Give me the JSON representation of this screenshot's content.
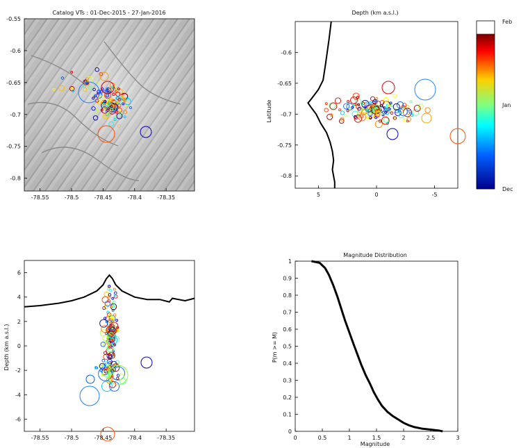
{
  "figure": {
    "panels": [
      "map",
      "depth_lat",
      "depth_lon",
      "magnitude"
    ]
  },
  "chart_data": [
    {
      "id": "map",
      "type": "scatter",
      "title": "Catalog VTs : 01-Dec-2015 - 27-Jan-2016",
      "xlabel": "",
      "ylabel": "",
      "xlim": [
        -78.575,
        -78.305
      ],
      "ylim": [
        -0.82,
        -0.55
      ],
      "xticks": [
        -78.55,
        -78.5,
        -78.45,
        -78.4,
        -78.35
      ],
      "yticks": [
        -0.55,
        -0.6,
        -0.65,
        -0.7,
        -0.75,
        -0.8
      ],
      "xtick_labels": [
        "-78.55",
        "-78.5",
        "-78.45",
        "-78.4",
        "-78.35"
      ],
      "ytick_labels": [
        "-0.55",
        "-0.6",
        "-0.65",
        "-0.7",
        "-0.75",
        "-0.8"
      ],
      "background": "shaded-relief",
      "grid": false
    },
    {
      "id": "depth_lat",
      "type": "scatter",
      "title": "Depth (km a.s.l.)",
      "xlabel": "",
      "ylabel": "Latitude",
      "xlim": [
        7,
        -7
      ],
      "ylim": [
        -0.82,
        -0.55
      ],
      "xticks": [
        5,
        0,
        -5
      ],
      "yticks": [
        -0.6,
        -0.65,
        -0.7,
        -0.75,
        -0.8
      ],
      "xtick_labels": [
        "5",
        "0",
        "-5"
      ],
      "ytick_labels": [
        "-0.6",
        "-0.65",
        "-0.7",
        "-0.75",
        "-0.8"
      ],
      "topography_line": [
        [
          3.9,
          -0.55
        ],
        [
          4.1,
          -0.58
        ],
        [
          4.4,
          -0.62
        ],
        [
          4.6,
          -0.645
        ],
        [
          5.0,
          -0.66
        ],
        [
          5.6,
          -0.675
        ],
        [
          5.9,
          -0.682
        ],
        [
          5.6,
          -0.69
        ],
        [
          5.2,
          -0.7
        ],
        [
          4.8,
          -0.715
        ],
        [
          4.3,
          -0.73
        ],
        [
          4.0,
          -0.745
        ],
        [
          3.8,
          -0.76
        ],
        [
          3.7,
          -0.775
        ],
        [
          3.8,
          -0.79
        ],
        [
          3.6,
          -0.81
        ],
        [
          3.6,
          -0.82
        ]
      ],
      "grid": false
    },
    {
      "id": "depth_lon",
      "type": "scatter",
      "title": "",
      "xlabel": "",
      "ylabel": "Depth (km a.s.l.)",
      "xlim": [
        -78.575,
        -78.305
      ],
      "ylim": [
        -7,
        7
      ],
      "xticks": [
        -78.55,
        -78.5,
        -78.45,
        -78.4,
        -78.35
      ],
      "yticks": [
        6,
        4,
        2,
        0,
        -2,
        -4,
        -6
      ],
      "xtick_labels": [
        "-78.55",
        "-78.5",
        "-78.45",
        "-78.4",
        "-78.35"
      ],
      "ytick_labels": [
        "6",
        "4",
        "2",
        "0",
        "-2",
        "-4",
        "-6"
      ],
      "topography_line": [
        [
          -78.575,
          3.2
        ],
        [
          -78.55,
          3.3
        ],
        [
          -78.52,
          3.5
        ],
        [
          -78.5,
          3.7
        ],
        [
          -78.48,
          4.0
        ],
        [
          -78.46,
          4.5
        ],
        [
          -78.45,
          5.0
        ],
        [
          -78.445,
          5.5
        ],
        [
          -78.44,
          5.8
        ],
        [
          -78.435,
          5.5
        ],
        [
          -78.43,
          5.0
        ],
        [
          -78.42,
          4.5
        ],
        [
          -78.4,
          4.0
        ],
        [
          -78.38,
          3.8
        ],
        [
          -78.36,
          3.8
        ],
        [
          -78.345,
          3.6
        ],
        [
          -78.34,
          3.9
        ],
        [
          -78.32,
          3.7
        ],
        [
          -78.305,
          3.9
        ]
      ],
      "grid": false
    },
    {
      "id": "magnitude",
      "type": "line",
      "title": "Magnitude Distribution",
      "xlabel": "Magnitude",
      "ylabel": "P(m >= M)",
      "xlim": [
        0,
        3
      ],
      "ylim": [
        0,
        1
      ],
      "xticks": [
        0,
        0.5,
        1,
        1.5,
        2,
        2.5,
        3
      ],
      "yticks": [
        0,
        0.1,
        0.2,
        0.3,
        0.4,
        0.5,
        0.6,
        0.7,
        0.8,
        0.9,
        1
      ],
      "xtick_labels": [
        "0",
        "0.5",
        "1",
        "1.5",
        "2",
        "2.5",
        "3"
      ],
      "ytick_labels": [
        "0",
        "0.1",
        "0.2",
        "0.3",
        "0.4",
        "0.5",
        "0.6",
        "0.7",
        "0.8",
        "0.9",
        "1"
      ],
      "series": [
        {
          "color": "#000000",
          "x": [
            0.3,
            0.45,
            0.55,
            0.62,
            0.7,
            0.78,
            0.85,
            0.92,
            1.0,
            1.08,
            1.15,
            1.22,
            1.3,
            1.38,
            1.45,
            1.52,
            1.6,
            1.7,
            1.8,
            1.9,
            2.0,
            2.1,
            2.2,
            2.35,
            2.5,
            2.65,
            2.72
          ],
          "y": [
            1.0,
            0.99,
            0.96,
            0.92,
            0.86,
            0.79,
            0.72,
            0.65,
            0.58,
            0.51,
            0.45,
            0.39,
            0.33,
            0.28,
            0.23,
            0.19,
            0.15,
            0.115,
            0.09,
            0.07,
            0.05,
            0.035,
            0.025,
            0.015,
            0.01,
            0.005,
            0.0
          ]
        }
      ],
      "grid": false
    }
  ],
  "colorbar": {
    "top_label": "Feb",
    "mid_label": "Jan",
    "bottom_label": "Dec",
    "colors": [
      "#ffffff",
      "#800000",
      "#ff0000",
      "#ffff00",
      "#00ffff",
      "#0000ff",
      "#00008b"
    ]
  }
}
